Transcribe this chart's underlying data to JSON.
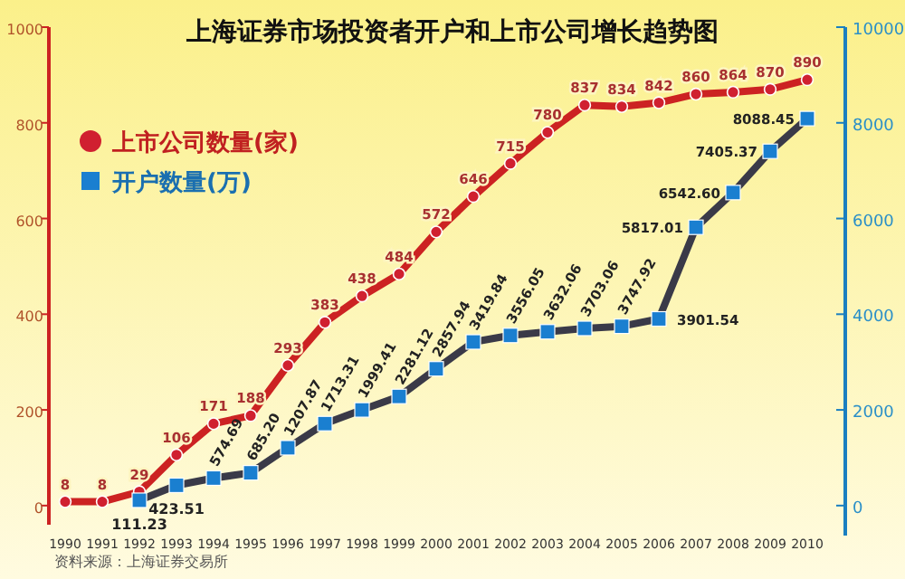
{
  "chart_data": {
    "type": "line",
    "title": "上海证券市场投资者开户和上市公司增长趋势图",
    "categories": [
      "1990",
      "1991",
      "1992",
      "1993",
      "1994",
      "1995",
      "1996",
      "1997",
      "1998",
      "1999",
      "2000",
      "2001",
      "2002",
      "2003",
      "2004",
      "2005",
      "2006",
      "2007",
      "2008",
      "2009",
      "2010"
    ],
    "series": [
      {
        "name": "上市公司数量(家)",
        "color": "#cc2222",
        "marker": "circle",
        "values": [
          8,
          8,
          29,
          106,
          171,
          188,
          293,
          383,
          438,
          484,
          572,
          646,
          715,
          780,
          837,
          834,
          842,
          860,
          864,
          870,
          890
        ],
        "value_labels": [
          "8",
          "8",
          "29",
          "106",
          "171",
          "188",
          "293",
          "383",
          "438",
          "484",
          "572",
          "646",
          "715",
          "780",
          "837",
          "834",
          "842",
          "860",
          "864",
          "870",
          "890"
        ]
      },
      {
        "name": "开户数量(万)",
        "color": "#3a3a48",
        "marker": "square",
        "axis": "y2",
        "values": [
          null,
          null,
          111.23,
          423.51,
          574.69,
          685.2,
          1207.87,
          1713.31,
          1999.41,
          2281.12,
          2857.94,
          3419.84,
          3556.05,
          3632.06,
          3703.06,
          3747.92,
          3901.54,
          5817.01,
          6542.6,
          7405.37,
          8088.45
        ],
        "value_labels": [
          null,
          null,
          "111.23",
          "423.51",
          "574.69",
          "685.20",
          "1207.87",
          "1713.31",
          "1999.41",
          "2281.12",
          "2857.94",
          "3419.84",
          "3556.05",
          "3632.06",
          "3703.06",
          "3747.92",
          "3901.54",
          "5817.01",
          "6542.60",
          "7405.37",
          "8088.45"
        ]
      }
    ],
    "ylim": [
      -40,
      1000
    ],
    "yticks": [
      0,
      200,
      400,
      600,
      800,
      1000
    ],
    "y2lim": [
      -400,
      10000
    ],
    "y2ticks": [
      0,
      2000,
      4000,
      6000,
      8000,
      10000
    ],
    "legend": "left",
    "grid": false,
    "annotations": [
      "资料来源：上海证券交易所"
    ]
  }
}
